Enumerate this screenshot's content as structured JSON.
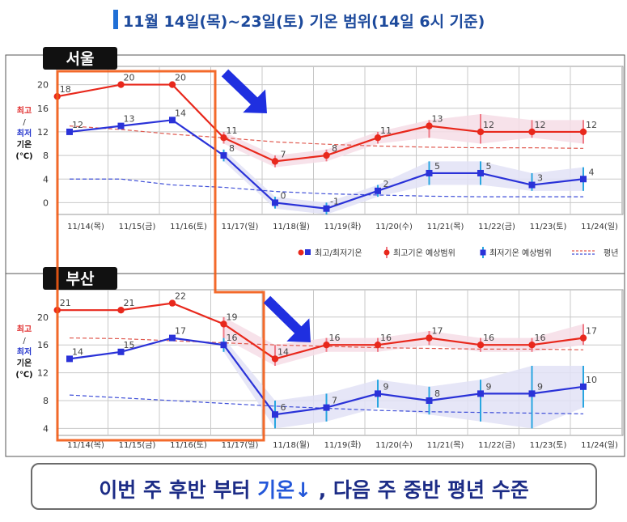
{
  "title": "11월 14일(목)~23일(토) 기온 범위(14일 6시 기준)",
  "caption": {
    "part1": "이번 주 후반 부터 ",
    "accent": "기온↓",
    "part2": " , 다음 주 중반 평년 수준"
  },
  "y_axis_label": {
    "high": "최고",
    "slash": "/",
    "low": "최저",
    "word": "기온",
    "unit": "(℃)"
  },
  "legend": {
    "highlow": "최고/최저기온",
    "high_range_a": "최고기온",
    "high_range_b": "예상범위",
    "low_range_a": "최저기온",
    "low_range_b": "예상범위",
    "normal": "평년"
  },
  "colors": {
    "high": "#e8281c",
    "low": "#2a32d8",
    "normal_high": "#e05a50",
    "normal_low": "#3f4fd8",
    "band_high": "#f6dde6",
    "band_low": "#e2e2f6",
    "highlight": "#f25a14",
    "arrow": "#1f2fe0"
  },
  "chart_data": [
    {
      "type": "line",
      "title": "서울",
      "categories": [
        "11/14(목)",
        "11/15(금)",
        "11/16(토)",
        "11/17(일)",
        "11/18(월)",
        "11/19(화)",
        "11/20(수)",
        "11/21(목)",
        "11/22(금)",
        "11/23(토)",
        "11/24(일)"
      ],
      "yticks": [
        0,
        4,
        8,
        12,
        16,
        20
      ],
      "ylim": [
        -2,
        22
      ],
      "series": [
        {
          "name": "최고기온",
          "values": [
            18,
            20,
            20,
            11,
            7,
            8,
            11,
            13,
            12,
            12,
            12
          ],
          "x_offset": [
            0.5,
            1,
            1,
            1,
            1,
            1,
            1,
            1,
            1,
            1,
            1
          ]
        },
        {
          "name": "최저기온",
          "values": [
            12,
            13,
            14,
            8,
            0,
            -1,
            2,
            5,
            5,
            3,
            4
          ]
        }
      ],
      "normal_high": [
        13,
        12.4,
        11.6,
        11,
        10.3,
        9.9,
        9.6,
        9.4,
        9.3,
        9.3,
        9.2
      ],
      "normal_low": [
        4,
        4,
        3,
        2.6,
        1.9,
        1.5,
        1.3,
        1.1,
        1,
        1,
        1
      ],
      "high_range": [
        null,
        null,
        null,
        [
          10,
          12
        ],
        [
          6,
          8
        ],
        [
          7,
          9
        ],
        [
          10,
          12
        ],
        [
          11,
          14
        ],
        [
          10,
          15
        ],
        [
          11,
          14
        ],
        [
          10,
          14
        ]
      ],
      "low_range": [
        null,
        null,
        null,
        [
          7,
          9
        ],
        [
          -1,
          1
        ],
        [
          -2,
          0
        ],
        [
          1,
          3
        ],
        [
          3,
          7
        ],
        [
          3,
          7
        ],
        [
          2,
          5
        ],
        [
          2,
          6
        ]
      ]
    },
    {
      "type": "line",
      "title": "부산",
      "categories": [
        "11/14(목)",
        "11/15(금)",
        "11/16(토)",
        "11/17(일)",
        "11/18(월)",
        "11/19(화)",
        "11/20(수)",
        "11/21(목)",
        "11/22(금)",
        "11/23(토)",
        "11/24(일)"
      ],
      "yticks": [
        4,
        8,
        12,
        16,
        20
      ],
      "ylim": [
        3,
        23
      ],
      "series": [
        {
          "name": "최고기온",
          "values": [
            21,
            21,
            22,
            19,
            14,
            16,
            16,
            17,
            16,
            16,
            17
          ],
          "x_offset": [
            0.5,
            1,
            1,
            1,
            1,
            1,
            1,
            1,
            1,
            1,
            1
          ]
        },
        {
          "name": "최저기온",
          "values": [
            14,
            15,
            17,
            16,
            6,
            7,
            9,
            8,
            9,
            9,
            10
          ]
        }
      ],
      "normal_high": [
        17,
        16.9,
        16.6,
        16.3,
        16,
        15.8,
        15.6,
        15.5,
        15.4,
        15.4,
        15.3
      ],
      "normal_low": [
        8.8,
        8.4,
        8,
        7.6,
        7.2,
        6.9,
        6.6,
        6.4,
        6.3,
        6.2,
        6.1
      ],
      "high_range": [
        null,
        null,
        null,
        [
          17,
          20
        ],
        [
          13,
          16
        ],
        [
          15,
          17
        ],
        [
          15,
          17
        ],
        [
          16,
          18
        ],
        [
          15,
          17
        ],
        [
          15,
          17
        ],
        [
          16,
          19
        ]
      ],
      "low_range": [
        null,
        null,
        null,
        [
          15,
          17
        ],
        [
          4,
          8
        ],
        [
          5,
          9
        ],
        [
          7,
          11
        ],
        [
          6,
          10
        ],
        [
          5,
          11
        ],
        [
          4,
          13
        ],
        [
          7,
          13
        ]
      ]
    }
  ]
}
